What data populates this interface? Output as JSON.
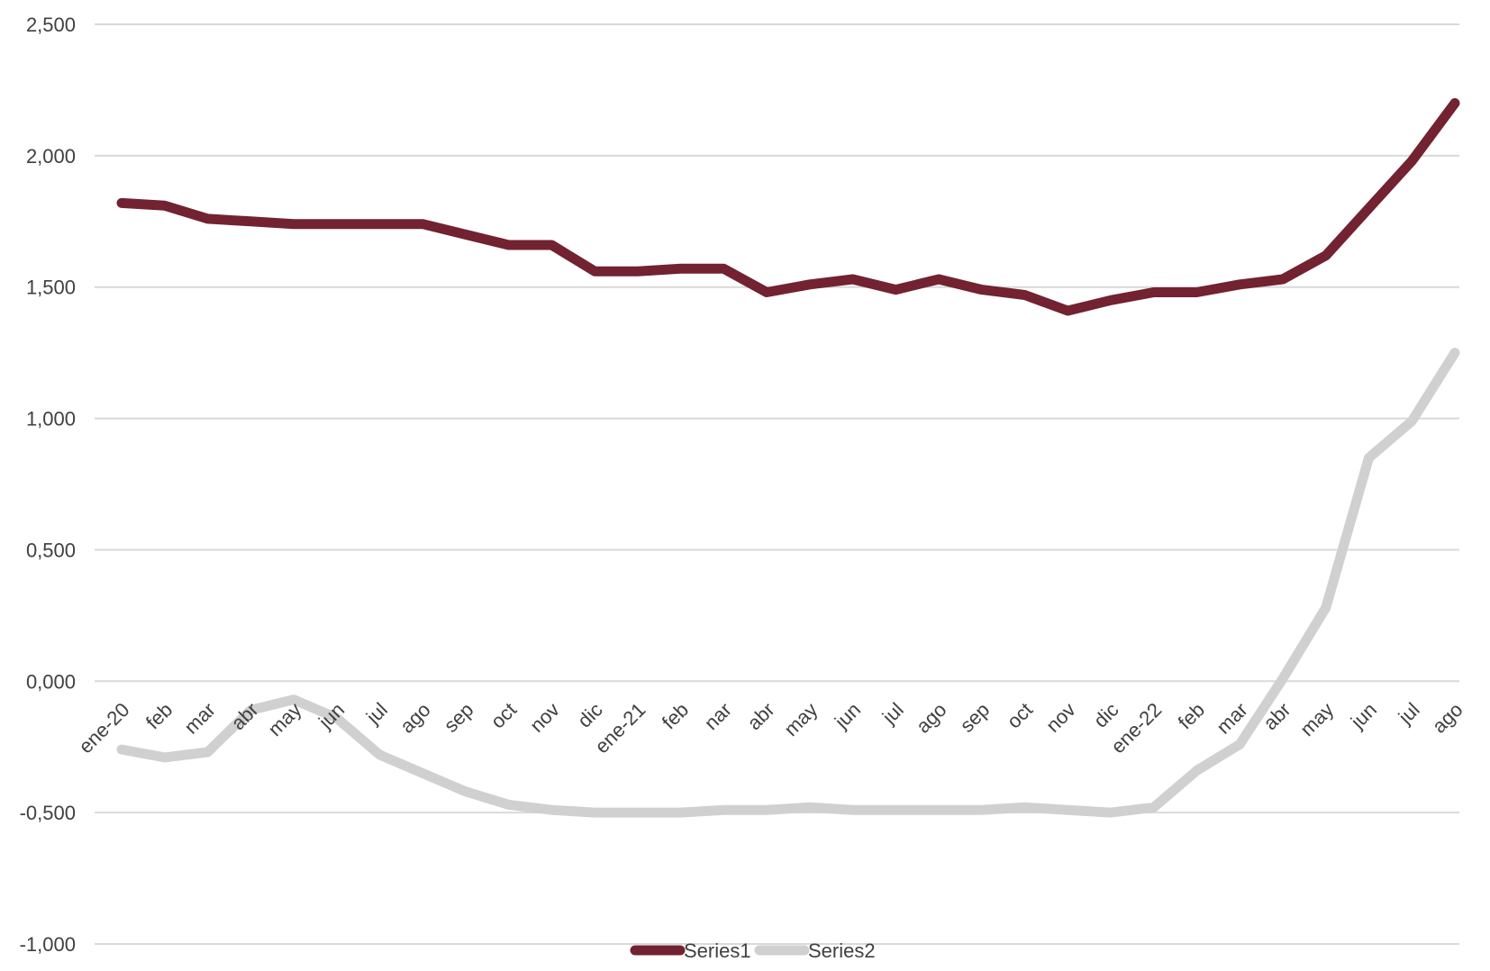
{
  "chart_data": {
    "type": "line",
    "title": "",
    "xlabel": "",
    "ylabel": "",
    "ylim": [
      -1.0,
      2.5
    ],
    "yticks": [
      2.5,
      2.0,
      1.5,
      1.0,
      0.5,
      0.0,
      -0.5,
      -1.0
    ],
    "ytick_labels": [
      "2,500",
      "2,000",
      "1,500",
      "1,000",
      "0,500",
      "0,000",
      "-0,500",
      "-1,000"
    ],
    "grid": true,
    "legend_position": "bottom-center",
    "categories": [
      "ene-20",
      "feb",
      "mar",
      "abr",
      "may",
      "jun",
      "jul",
      "ago",
      "sep",
      "oct",
      "nov",
      "dic",
      "ene-21",
      "feb",
      "nar",
      "abr",
      "may",
      "jun",
      "jul",
      "ago",
      "sep",
      "oct",
      "nov",
      "dic",
      "ene-22",
      "feb",
      "mar",
      "abr",
      "may",
      "jun",
      "jul",
      "ago"
    ],
    "series": [
      {
        "name": "Series1",
        "color": "#722231",
        "values": [
          1.82,
          1.81,
          1.76,
          1.75,
          1.74,
          1.74,
          1.74,
          1.74,
          1.7,
          1.66,
          1.66,
          1.56,
          1.56,
          1.57,
          1.57,
          1.48,
          1.51,
          1.53,
          1.49,
          1.53,
          1.49,
          1.47,
          1.41,
          1.45,
          1.48,
          1.48,
          1.51,
          1.53,
          1.62,
          1.8,
          1.98,
          2.2
        ]
      },
      {
        "name": "Series2",
        "color": "#d0d0d0",
        "values": [
          -0.26,
          -0.29,
          -0.27,
          -0.11,
          -0.07,
          -0.14,
          -0.28,
          -0.35,
          -0.42,
          -0.47,
          -0.49,
          -0.5,
          -0.5,
          -0.5,
          -0.49,
          -0.49,
          -0.48,
          -0.49,
          -0.49,
          -0.49,
          -0.49,
          -0.48,
          -0.49,
          -0.5,
          -0.48,
          -0.34,
          -0.24,
          0.01,
          0.28,
          0.85,
          0.99,
          1.25
        ]
      }
    ]
  }
}
